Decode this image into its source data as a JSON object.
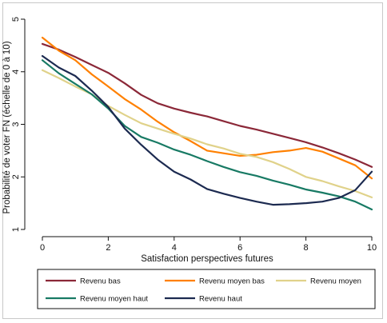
{
  "chart_data": {
    "type": "line",
    "xlabel": "Satisfaction perspectives futures",
    "ylabel": "Probabilité de voter FN (échelle de 0 à 10)",
    "xlim": [
      0,
      10
    ],
    "ylim": [
      1,
      5
    ],
    "xticks": [
      "0",
      "2",
      "4",
      "6",
      "8",
      "10"
    ],
    "yticks": [
      "1",
      "2",
      "3",
      "4",
      "5"
    ],
    "grid": false,
    "legend_position": "bottom",
    "series": [
      {
        "name": "Revenu bas",
        "color": "#8b2838",
        "x": [
          0,
          0.5,
          1,
          1.5,
          2,
          2.5,
          3,
          3.5,
          4,
          4.5,
          5,
          5.5,
          6,
          6.5,
          7,
          7.5,
          8,
          8.5,
          9,
          9.5,
          10
        ],
        "y": [
          4.53,
          4.42,
          4.28,
          4.13,
          3.98,
          3.78,
          3.56,
          3.4,
          3.3,
          3.22,
          3.15,
          3.06,
          2.97,
          2.9,
          2.82,
          2.74,
          2.66,
          2.56,
          2.45,
          2.33,
          2.19
        ]
      },
      {
        "name": "Revenu moyen bas",
        "color": "#ff8000",
        "x": [
          0,
          0.5,
          1,
          1.5,
          2,
          2.5,
          3,
          3.5,
          4,
          4.5,
          5,
          5.5,
          6,
          6.5,
          7,
          7.5,
          8,
          8.5,
          9,
          9.5,
          10
        ],
        "y": [
          4.65,
          4.4,
          4.22,
          3.95,
          3.72,
          3.48,
          3.28,
          3.05,
          2.85,
          2.68,
          2.5,
          2.45,
          2.4,
          2.42,
          2.47,
          2.5,
          2.55,
          2.48,
          2.35,
          2.22,
          1.97
        ]
      },
      {
        "name": "Revenu moyen",
        "color": "#e0d28a",
        "x": [
          0,
          0.5,
          1,
          1.5,
          2,
          2.5,
          3,
          3.5,
          4,
          4.5,
          5,
          5.5,
          6,
          6.5,
          7,
          7.5,
          8,
          8.5,
          9,
          9.5,
          10
        ],
        "y": [
          4.03,
          3.88,
          3.72,
          3.57,
          3.35,
          3.18,
          3.02,
          2.92,
          2.82,
          2.73,
          2.62,
          2.54,
          2.44,
          2.38,
          2.28,
          2.15,
          2.0,
          1.92,
          1.82,
          1.73,
          1.61
        ]
      },
      {
        "name": "Revenu moyen haut",
        "color": "#187a64",
        "x": [
          0,
          0.5,
          1,
          1.5,
          2,
          2.5,
          3,
          3.5,
          4,
          4.5,
          5,
          5.5,
          6,
          6.5,
          7,
          7.5,
          8,
          8.5,
          9,
          9.5,
          10
        ],
        "y": [
          4.22,
          3.97,
          3.77,
          3.57,
          3.3,
          2.97,
          2.76,
          2.65,
          2.52,
          2.42,
          2.3,
          2.19,
          2.09,
          2.02,
          1.93,
          1.85,
          1.76,
          1.7,
          1.63,
          1.53,
          1.38
        ]
      },
      {
        "name": "Revenu haut",
        "color": "#1c2a50",
        "x": [
          0,
          0.5,
          1,
          1.5,
          2,
          2.5,
          3,
          3.5,
          4,
          4.5,
          5,
          5.5,
          6,
          6.5,
          7,
          7.5,
          8,
          8.5,
          9,
          9.5,
          10
        ],
        "y": [
          4.3,
          4.08,
          3.92,
          3.64,
          3.33,
          2.92,
          2.61,
          2.33,
          2.1,
          1.95,
          1.77,
          1.68,
          1.6,
          1.53,
          1.47,
          1.48,
          1.5,
          1.53,
          1.6,
          1.75,
          2.1
        ]
      }
    ]
  }
}
